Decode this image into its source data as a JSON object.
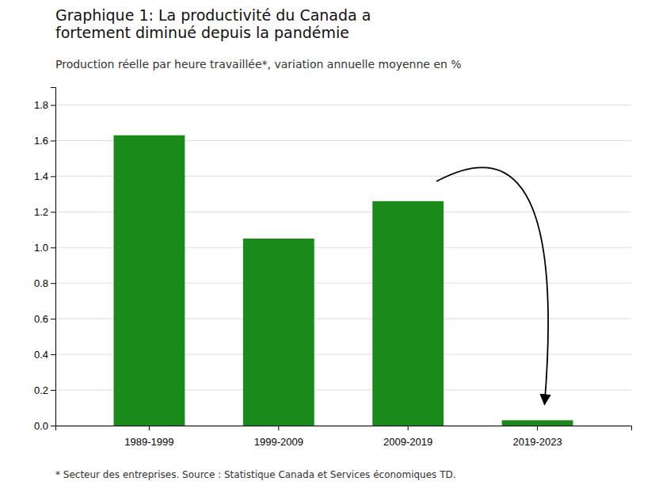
{
  "chart_data": {
    "type": "bar",
    "title": [
      "Graphique 1: La productivité du Canada a",
      "fortement diminué depuis la pandémie"
    ],
    "subtitle": "Production réelle par heure travaillée*, variation annuelle moyenne en %",
    "footnote": "* Secteur des entreprises. Source : Statistique Canada et Services économiques TD.",
    "categories": [
      "1989-1999",
      "1999-2009",
      "2009-2019",
      "2019-2023"
    ],
    "values": [
      1.63,
      1.05,
      1.26,
      0.03
    ],
    "color": "#1a8a1a",
    "ylim": [
      0,
      1.9
    ],
    "yticks": [
      {
        "value": 0.0,
        "label": "0.0"
      },
      0.2,
      0.4,
      0.6,
      0.8,
      {
        "value": 1.0,
        "label": "1.0"
      },
      1.2,
      1.4,
      1.6,
      1.8
    ],
    "grid": true
  }
}
